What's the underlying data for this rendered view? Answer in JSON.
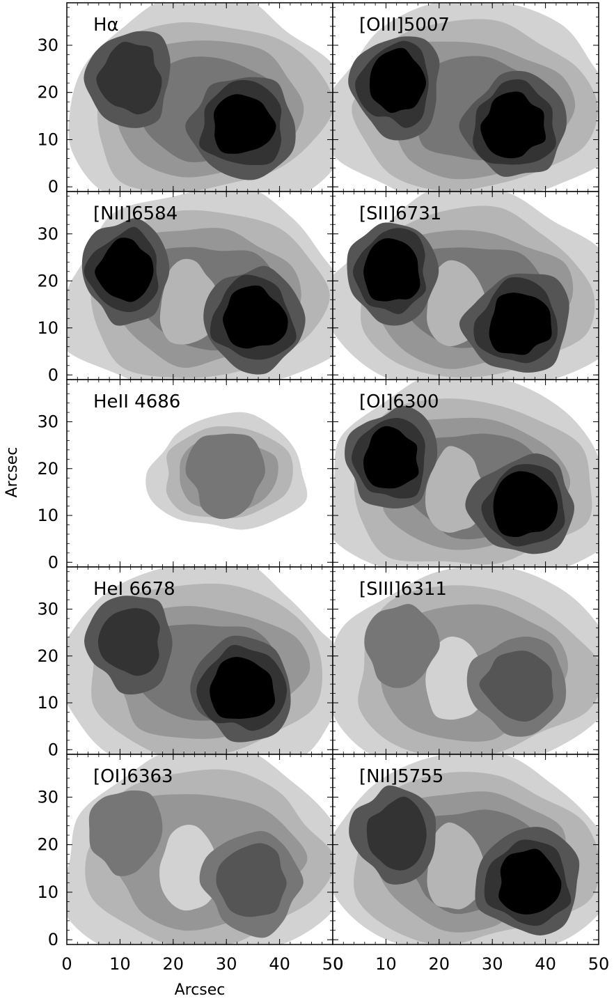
{
  "chart_data": {
    "type": "contour",
    "layout": "5 rows x 2 columns of emission-line contour maps",
    "xlabel": "Arcsec",
    "ylabel": "Arcsec",
    "xlim": [
      0,
      50
    ],
    "ylim": [
      0,
      39
    ],
    "xticks": [
      0,
      10,
      20,
      30,
      40,
      50
    ],
    "yticks": [
      0,
      10,
      20,
      30
    ],
    "xtick_labels_left": [
      "0",
      "10",
      "20",
      "30",
      "40",
      "50"
    ],
    "xtick_labels_right": [
      "0",
      "10",
      "20",
      "30",
      "40",
      "50"
    ],
    "ytick_labels": [
      "0",
      "10",
      "20",
      "30"
    ],
    "levels_gray": [
      "#d2d2d2",
      "#b5b5b5",
      "#969696",
      "#767676",
      "#555555",
      "#333333",
      "#000000"
    ],
    "panels": [
      {
        "label": "Hα",
        "blobs": [
          {
            "x": 12,
            "y": 23,
            "level": 6
          },
          {
            "x": 33,
            "y": 13,
            "level": 7
          }
        ],
        "extent": "large"
      },
      {
        "label": "[OIII]5007",
        "blobs": [
          {
            "x": 12,
            "y": 22,
            "level": 7
          },
          {
            "x": 34,
            "y": 13,
            "level": 7
          }
        ],
        "extent": "large"
      },
      {
        "label": "[NII]6584",
        "blobs": [
          {
            "x": 11,
            "y": 22,
            "level": 7
          },
          {
            "x": 35,
            "y": 12,
            "level": 7
          }
        ],
        "extent": "ring"
      },
      {
        "label": "[SII]6731",
        "blobs": [
          {
            "x": 11,
            "y": 22,
            "level": 7
          },
          {
            "x": 35,
            "y": 11,
            "level": 7
          }
        ],
        "extent": "ring"
      },
      {
        "label": "HeII 4686",
        "blobs": [
          {
            "x": 30,
            "y": 19,
            "level": 4
          }
        ],
        "extent": "compact"
      },
      {
        "label": "[OI]6300",
        "blobs": [
          {
            "x": 11,
            "y": 22,
            "level": 7
          },
          {
            "x": 36,
            "y": 12,
            "level": 7
          }
        ],
        "extent": "ring"
      },
      {
        "label": "HeI 6678",
        "blobs": [
          {
            "x": 12,
            "y": 23,
            "level": 6
          },
          {
            "x": 33,
            "y": 13,
            "level": 7
          }
        ],
        "extent": "large"
      },
      {
        "label": "[SIII]6311",
        "blobs": [
          {
            "x": 13,
            "y": 22,
            "level": 4
          },
          {
            "x": 35,
            "y": 14,
            "level": 5
          }
        ],
        "extent": "ring-faint"
      },
      {
        "label": "[OI]6363",
        "blobs": [
          {
            "x": 11,
            "y": 23,
            "level": 4
          },
          {
            "x": 35,
            "y": 12,
            "level": 5
          }
        ],
        "extent": "ring-faint"
      },
      {
        "label": "[NII]5755",
        "blobs": [
          {
            "x": 12,
            "y": 22,
            "level": 6
          },
          {
            "x": 37,
            "y": 12,
            "level": 7
          }
        ],
        "extent": "ring"
      }
    ]
  }
}
